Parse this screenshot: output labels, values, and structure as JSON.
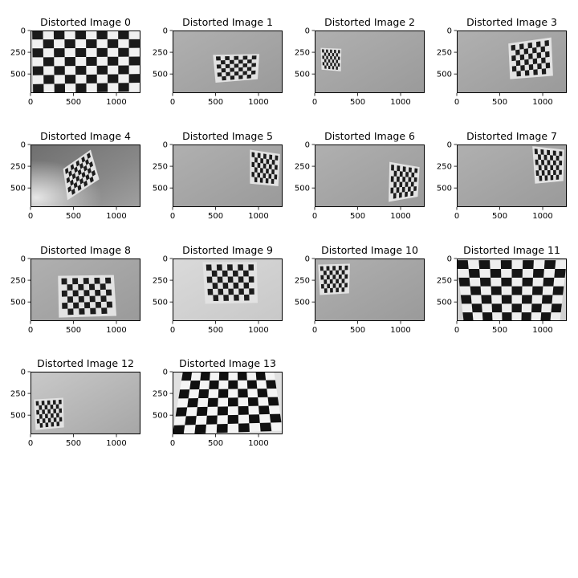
{
  "figure": {
    "panels": [
      {
        "title": "Distorted Image 0"
      },
      {
        "title": "Distorted Image 1"
      },
      {
        "title": "Distorted Image 2"
      },
      {
        "title": "Distorted Image 3"
      },
      {
        "title": "Distorted Image 4"
      },
      {
        "title": "Distorted Image 5"
      },
      {
        "title": "Distorted Image 6"
      },
      {
        "title": "Distorted Image 7"
      },
      {
        "title": "Distorted Image 8"
      },
      {
        "title": "Distorted Image 9"
      },
      {
        "title": "Distorted Image 10"
      },
      {
        "title": "Distorted Image 11"
      },
      {
        "title": "Distorted Image 12"
      },
      {
        "title": "Distorted Image 13"
      }
    ],
    "x_ticks": [
      "0",
      "500",
      "1000"
    ],
    "y_ticks": [
      "0",
      "250",
      "500"
    ]
  }
}
